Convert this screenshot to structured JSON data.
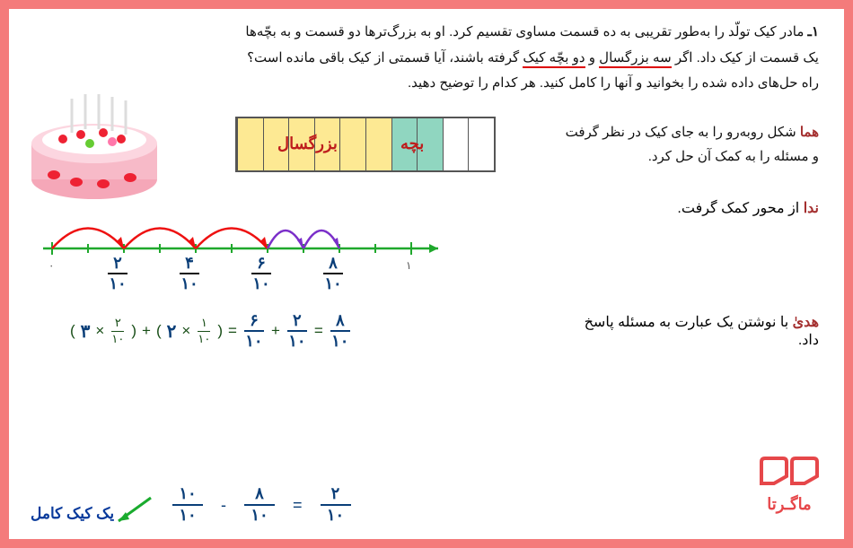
{
  "problem": {
    "number": "۱ـ",
    "line1": "مادر کیک تولّد را به‌طور تقریبی به ده قسمت مساوی تقسیم کرد. او به بزرگ‌ترها دو قسمت و به بچّه‌ها",
    "line2a": "یک قسمت از کیک داد. اگر",
    "u1": "سه بزرگسال",
    "line2b": "و",
    "u2": "دو بچّه کیک",
    "line2c": "گرفته باشند، آیا قسمتی از کیک باقی مانده است؟",
    "line3": "راه حل‌های داده شده را بخوانید و آنها را کامل کنید. هر کدام را توضیح دهید."
  },
  "homa": {
    "name": "هما",
    "text_a": "شکل روبه‌رو را به جای کیک در نظر گرفت",
    "text_b": "و مسئله را به کمک آن حل کرد.",
    "label_adult": "بزرگسال",
    "label_child": "بچه",
    "cells": [
      "yellow",
      "yellow",
      "yellow",
      "yellow",
      "yellow",
      "yellow",
      "green",
      "green",
      "white",
      "white"
    ]
  },
  "neda": {
    "name": "ندا",
    "text": "از محور کمک گرفت.",
    "fracs": [
      {
        "n": "۲",
        "d": "۱۰"
      },
      {
        "n": "۴",
        "d": "۱۰"
      },
      {
        "n": "۶",
        "d": "۱۰"
      },
      {
        "n": "۸",
        "d": "۱۰"
      }
    ],
    "arcs_red": 3,
    "arcs_purple": 2
  },
  "hoda": {
    "name": "هدیٰ",
    "text": "با نوشتن یک عبارت به مسئله پاسخ داد.",
    "fill_a": "۳",
    "frac_a": {
      "n": "۲",
      "d": "۱۰"
    },
    "fill_b": "۲",
    "frac_b": {
      "n": "۱",
      "d": "۱۰"
    },
    "res1": {
      "n": "۶",
      "d": "۱۰"
    },
    "res2": {
      "n": "۲",
      "d": "۱۰"
    },
    "res3": {
      "n": "۸",
      "d": "۱۰"
    }
  },
  "final": {
    "a": {
      "n": "۱۰",
      "d": "۱۰"
    },
    "b": {
      "n": "۸",
      "d": "۱۰"
    },
    "c": {
      "n": "۲",
      "d": "۱۰"
    },
    "label": "یک کیک کامل",
    "minus": "-",
    "eq": "="
  },
  "logo_text": "ماگـرتا",
  "colors": {
    "border": "#f47b7b",
    "red_under": "#d00",
    "name": "#a42f2f",
    "yellow": "#fde993",
    "green": "#90d6c0",
    "navy": "#0a3e78",
    "darkgreen": "#174d16",
    "axis_green": "#1fa82c",
    "arc_red": "#e11",
    "arc_purple": "#7b2fc9",
    "arrow_green": "#1aab2e",
    "logo": "#e6474a"
  }
}
